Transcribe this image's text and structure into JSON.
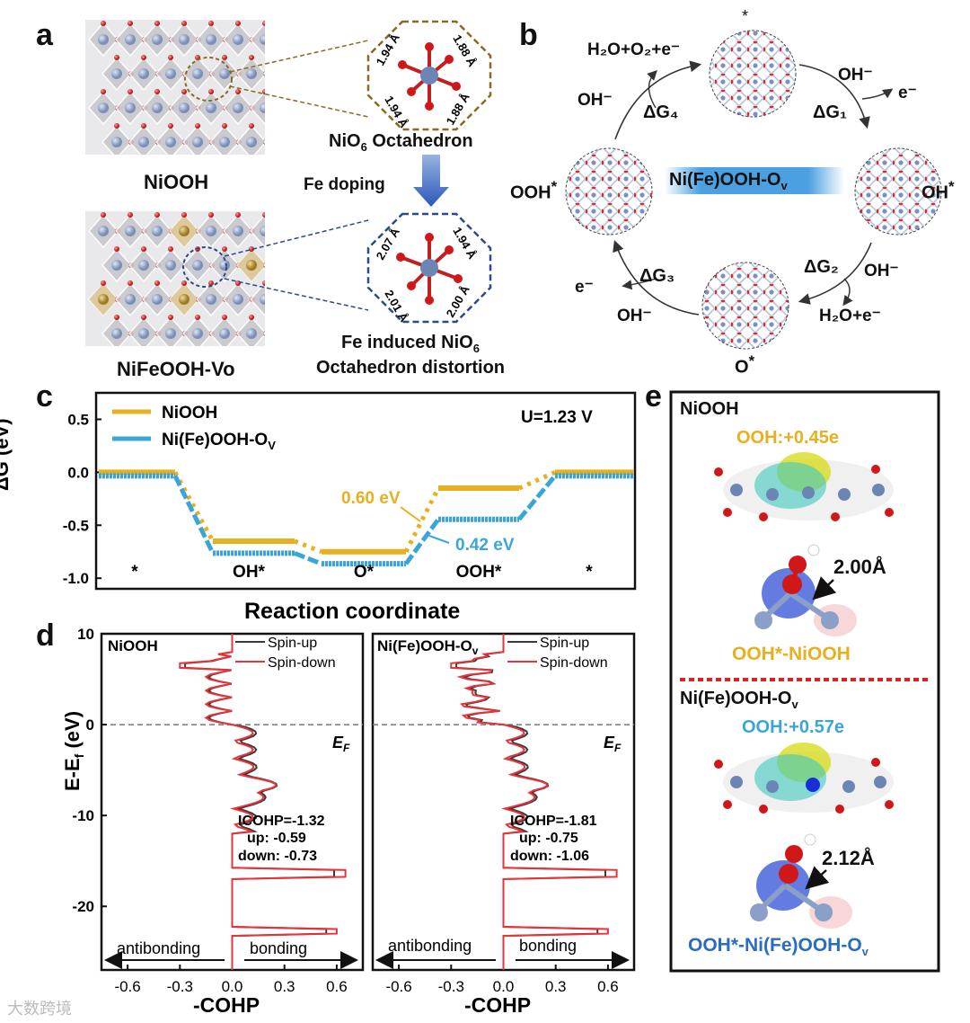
{
  "panel_a": {
    "label": "a",
    "top_caption": "NiOOH",
    "bottom_caption": "NiFeOOH-Vo",
    "octa1_title_main": "NiO",
    "octa1_title_sub": "6",
    "octa1_title_rest": " Octahedron",
    "octa1_bonds": [
      "1.94 Å",
      "1.88 Å",
      "1.94 Å",
      "1.88 Å"
    ],
    "doping_label": "Fe doping",
    "octa2_bonds": [
      "2.07 Å",
      "1.94 Å",
      "2.01 Å",
      "2.00 Å"
    ],
    "octa2_title_line1": "Fe induced NiO",
    "octa2_title_sub": "6",
    "octa2_title_line2": "Octahedron distortion"
  },
  "panel_b": {
    "label": "b",
    "center_label": "Ni(Fe)OOH-O",
    "center_sub": "v",
    "star": "*",
    "ohstar": "OH",
    "ostar": "O",
    "oohstar": "OOH",
    "top_product": "H₂O+O₂+e⁻",
    "oh_minus": "OH⁻",
    "e_minus": "e⁻",
    "h2o_e": "H₂O+e⁻",
    "dg1": "ΔG₁",
    "dg2": "ΔG₂",
    "dg3": "ΔG₃",
    "dg4": "ΔG₄"
  },
  "panel_c": {
    "label": "c",
    "legend": [
      "NiOOH",
      "Ni(Fe)OOH-O"
    ],
    "legend_sub": "V",
    "potential": "U=1.23 V",
    "ylabel": "ΔG (eV)",
    "xlabel": "Reaction coordinate",
    "ann1": "0.60 eV",
    "ann2": "0.42 eV",
    "states": [
      "*",
      "OH*",
      "O*",
      "OOH*",
      "*"
    ],
    "yticks": [
      "0.5",
      "0.0",
      "-0.5",
      "-1.0"
    ],
    "colors": {
      "niooh": "#e8b020",
      "nifeooh": "#3aa6d8"
    }
  },
  "chart_data": [
    {
      "type": "line",
      "title": "",
      "xlabel": "Reaction coordinate",
      "ylabel": "ΔG (eV)",
      "ylim": [
        -1.1,
        0.75
      ],
      "categories": [
        "*",
        "OH*",
        "O*",
        "OOH*",
        "*"
      ],
      "series": [
        {
          "name": "NiOOH",
          "values": [
            0.0,
            -0.65,
            -0.75,
            -0.15,
            0.0
          ]
        },
        {
          "name": "Ni(Fe)OOH-Ov",
          "values": [
            0.0,
            -0.73,
            -0.83,
            -0.41,
            0.0
          ]
        }
      ],
      "annotations": [
        "0.60 eV",
        "0.42 eV",
        "U=1.23 V"
      ]
    },
    {
      "type": "line",
      "title": "NiOOH",
      "xlabel": "-COHP",
      "ylabel": "E-Ef (eV)",
      "ylim": [
        -27,
        10
      ],
      "xlim": [
        -0.75,
        0.75
      ],
      "series": [
        {
          "name": "Spin-up"
        },
        {
          "name": "Spin-down"
        }
      ],
      "annotations": [
        "ICOHP=-1.32",
        "up: -0.59",
        "down: -0.73"
      ]
    },
    {
      "type": "line",
      "title": "Ni(Fe)OOH-Ov",
      "xlabel": "-COHP",
      "ylabel": "E-Ef (eV)",
      "ylim": [
        -27,
        10
      ],
      "xlim": [
        -0.75,
        0.75
      ],
      "series": [
        {
          "name": "Spin-up"
        },
        {
          "name": "Spin-down"
        }
      ],
      "annotations": [
        "ICOHP=-1.81",
        "up: -0.75",
        "down: -1.06"
      ]
    }
  ],
  "panel_d": {
    "label": "d",
    "ylabel_main": "E-E",
    "ylabel_sub": "f",
    "ylabel_unit": " (eV)",
    "yticks": [
      "10",
      "0",
      "-10",
      "-20"
    ],
    "xticks": [
      "-0.6",
      "-0.3",
      "0.0",
      "0.3",
      "0.6"
    ],
    "xlabel": "-COHP",
    "ef": "E",
    "ef_sub": "F",
    "antibonding": "antibonding",
    "bonding": "bonding",
    "legend_up": "Spin-up",
    "legend_down": "Spin-down",
    "left_title": "NiOOH",
    "right_title_main": "Ni(Fe)OOH-O",
    "right_title_sub": "v",
    "left_icohp": [
      "ICOHP=-1.32",
      "up: -0.59",
      "down: -0.73"
    ],
    "right_icohp": [
      "ICOHP=-1.81",
      "up: -0.75",
      "down: -1.06"
    ],
    "colors": {
      "up": "#3a3a3a",
      "down": "#e8333a"
    }
  },
  "panel_e": {
    "label": "e",
    "top_title": "NiOOH",
    "top_charge": "OOH:+0.45e",
    "top_dist": "2.00Å",
    "top_caption": "OOH*-NiOOH",
    "bottom_title_main": "Ni(Fe)OOH-O",
    "bottom_title_sub": "v",
    "bottom_charge": "OOH:+0.57e",
    "bottom_dist": "2.12Å",
    "bottom_caption_main": "OOH*-Ni(Fe)OOH-O",
    "bottom_caption_sub": "v"
  },
  "watermark": "大数跨境"
}
